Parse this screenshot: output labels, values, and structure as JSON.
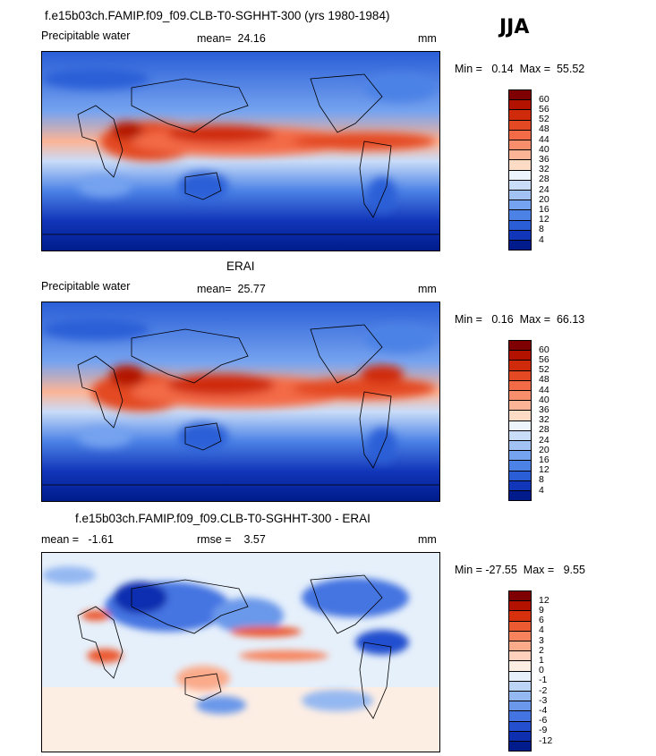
{
  "season": "JJA",
  "panels": [
    {
      "title": "f.e15b03ch.FAMIP.f09_f09.CLB-T0-SGHHT-300 (yrs 1980-1984)",
      "left_label": "Precipitable water",
      "stat_text": "mean=  24.16",
      "units": "mm",
      "minmax_text": "Min =   0.14  Max =  55.52",
      "colorbar": {
        "labels": [
          "60",
          "56",
          "52",
          "48",
          "44",
          "40",
          "36",
          "32",
          "28",
          "24",
          "20",
          "16",
          "12",
          "8",
          "4"
        ],
        "colors": [
          "#7f0000",
          "#b31200",
          "#cf2a0a",
          "#e34a24",
          "#f36b46",
          "#f98e6c",
          "#fcb496",
          "#fddcc6",
          "#eef4fc",
          "#c9dcf8",
          "#a2c2f4",
          "#76a3ef",
          "#4c82e6",
          "#2a5ed7",
          "#1236b9",
          "#001c8c"
        ]
      }
    },
    {
      "title": "ERAI",
      "left_label": "Precipitable water",
      "stat_text": "mean=  25.77",
      "units": "mm",
      "minmax_text": "Min =   0.16  Max =  66.13",
      "colorbar": {
        "labels": [
          "60",
          "56",
          "52",
          "48",
          "44",
          "40",
          "36",
          "32",
          "28",
          "24",
          "20",
          "16",
          "12",
          "8",
          "4"
        ],
        "colors": [
          "#7f0000",
          "#b31200",
          "#cf2a0a",
          "#e34a24",
          "#f36b46",
          "#f98e6c",
          "#fcb496",
          "#fddcc6",
          "#eef4fc",
          "#c9dcf8",
          "#a2c2f4",
          "#76a3ef",
          "#4c82e6",
          "#2a5ed7",
          "#1236b9",
          "#001c8c"
        ]
      }
    },
    {
      "title": "f.e15b03ch.FAMIP.f09_f09.CLB-T0-SGHHT-300 - ERAI",
      "left_label": "mean =   -1.61",
      "stat_text": "rmse =    3.57",
      "units": "mm",
      "minmax_text": "Min = -27.55  Max =   9.55",
      "colorbar": {
        "labels": [
          "12",
          "9",
          "6",
          "4",
          "3",
          "2",
          "1",
          "0",
          "-1",
          "-2",
          "-3",
          "-4",
          "-6",
          "-9",
          "-12"
        ],
        "colors": [
          "#7f0000",
          "#b31200",
          "#d6300c",
          "#ec5a32",
          "#f7825c",
          "#fbaa8a",
          "#fdd1bc",
          "#fdeee4",
          "#e6f0fb",
          "#bcd4f6",
          "#94b8f1",
          "#6b98ea",
          "#4474e1",
          "#2450cf",
          "#0d2fb0",
          "#001c8c"
        ]
      }
    }
  ],
  "chart_data": [
    {
      "type": "heatmap",
      "title": "f.e15b03ch.FAMIP.f09_f09.CLB-T0-SGHHT-300 (yrs 1980-1984)",
      "variable": "Precipitable water",
      "units": "mm",
      "mean": 24.16,
      "min": 0.14,
      "max": 55.52,
      "contour_levels": [
        4,
        8,
        12,
        16,
        20,
        24,
        28,
        32,
        36,
        40,
        44,
        48,
        52,
        56,
        60
      ]
    },
    {
      "type": "heatmap",
      "title": "ERAI",
      "variable": "Precipitable water",
      "units": "mm",
      "mean": 25.77,
      "min": 0.16,
      "max": 66.13,
      "contour_levels": [
        4,
        8,
        12,
        16,
        20,
        24,
        28,
        32,
        36,
        40,
        44,
        48,
        52,
        56,
        60
      ]
    },
    {
      "type": "heatmap",
      "title": "f.e15b03ch.FAMIP.f09_f09.CLB-T0-SGHHT-300 - ERAI",
      "units": "mm",
      "mean": -1.61,
      "rmse": 3.57,
      "min": -27.55,
      "max": 9.55,
      "contour_levels": [
        -12,
        -9,
        -6,
        -4,
        -3,
        -2,
        -1,
        0,
        1,
        2,
        3,
        4,
        6,
        9,
        12
      ]
    }
  ]
}
